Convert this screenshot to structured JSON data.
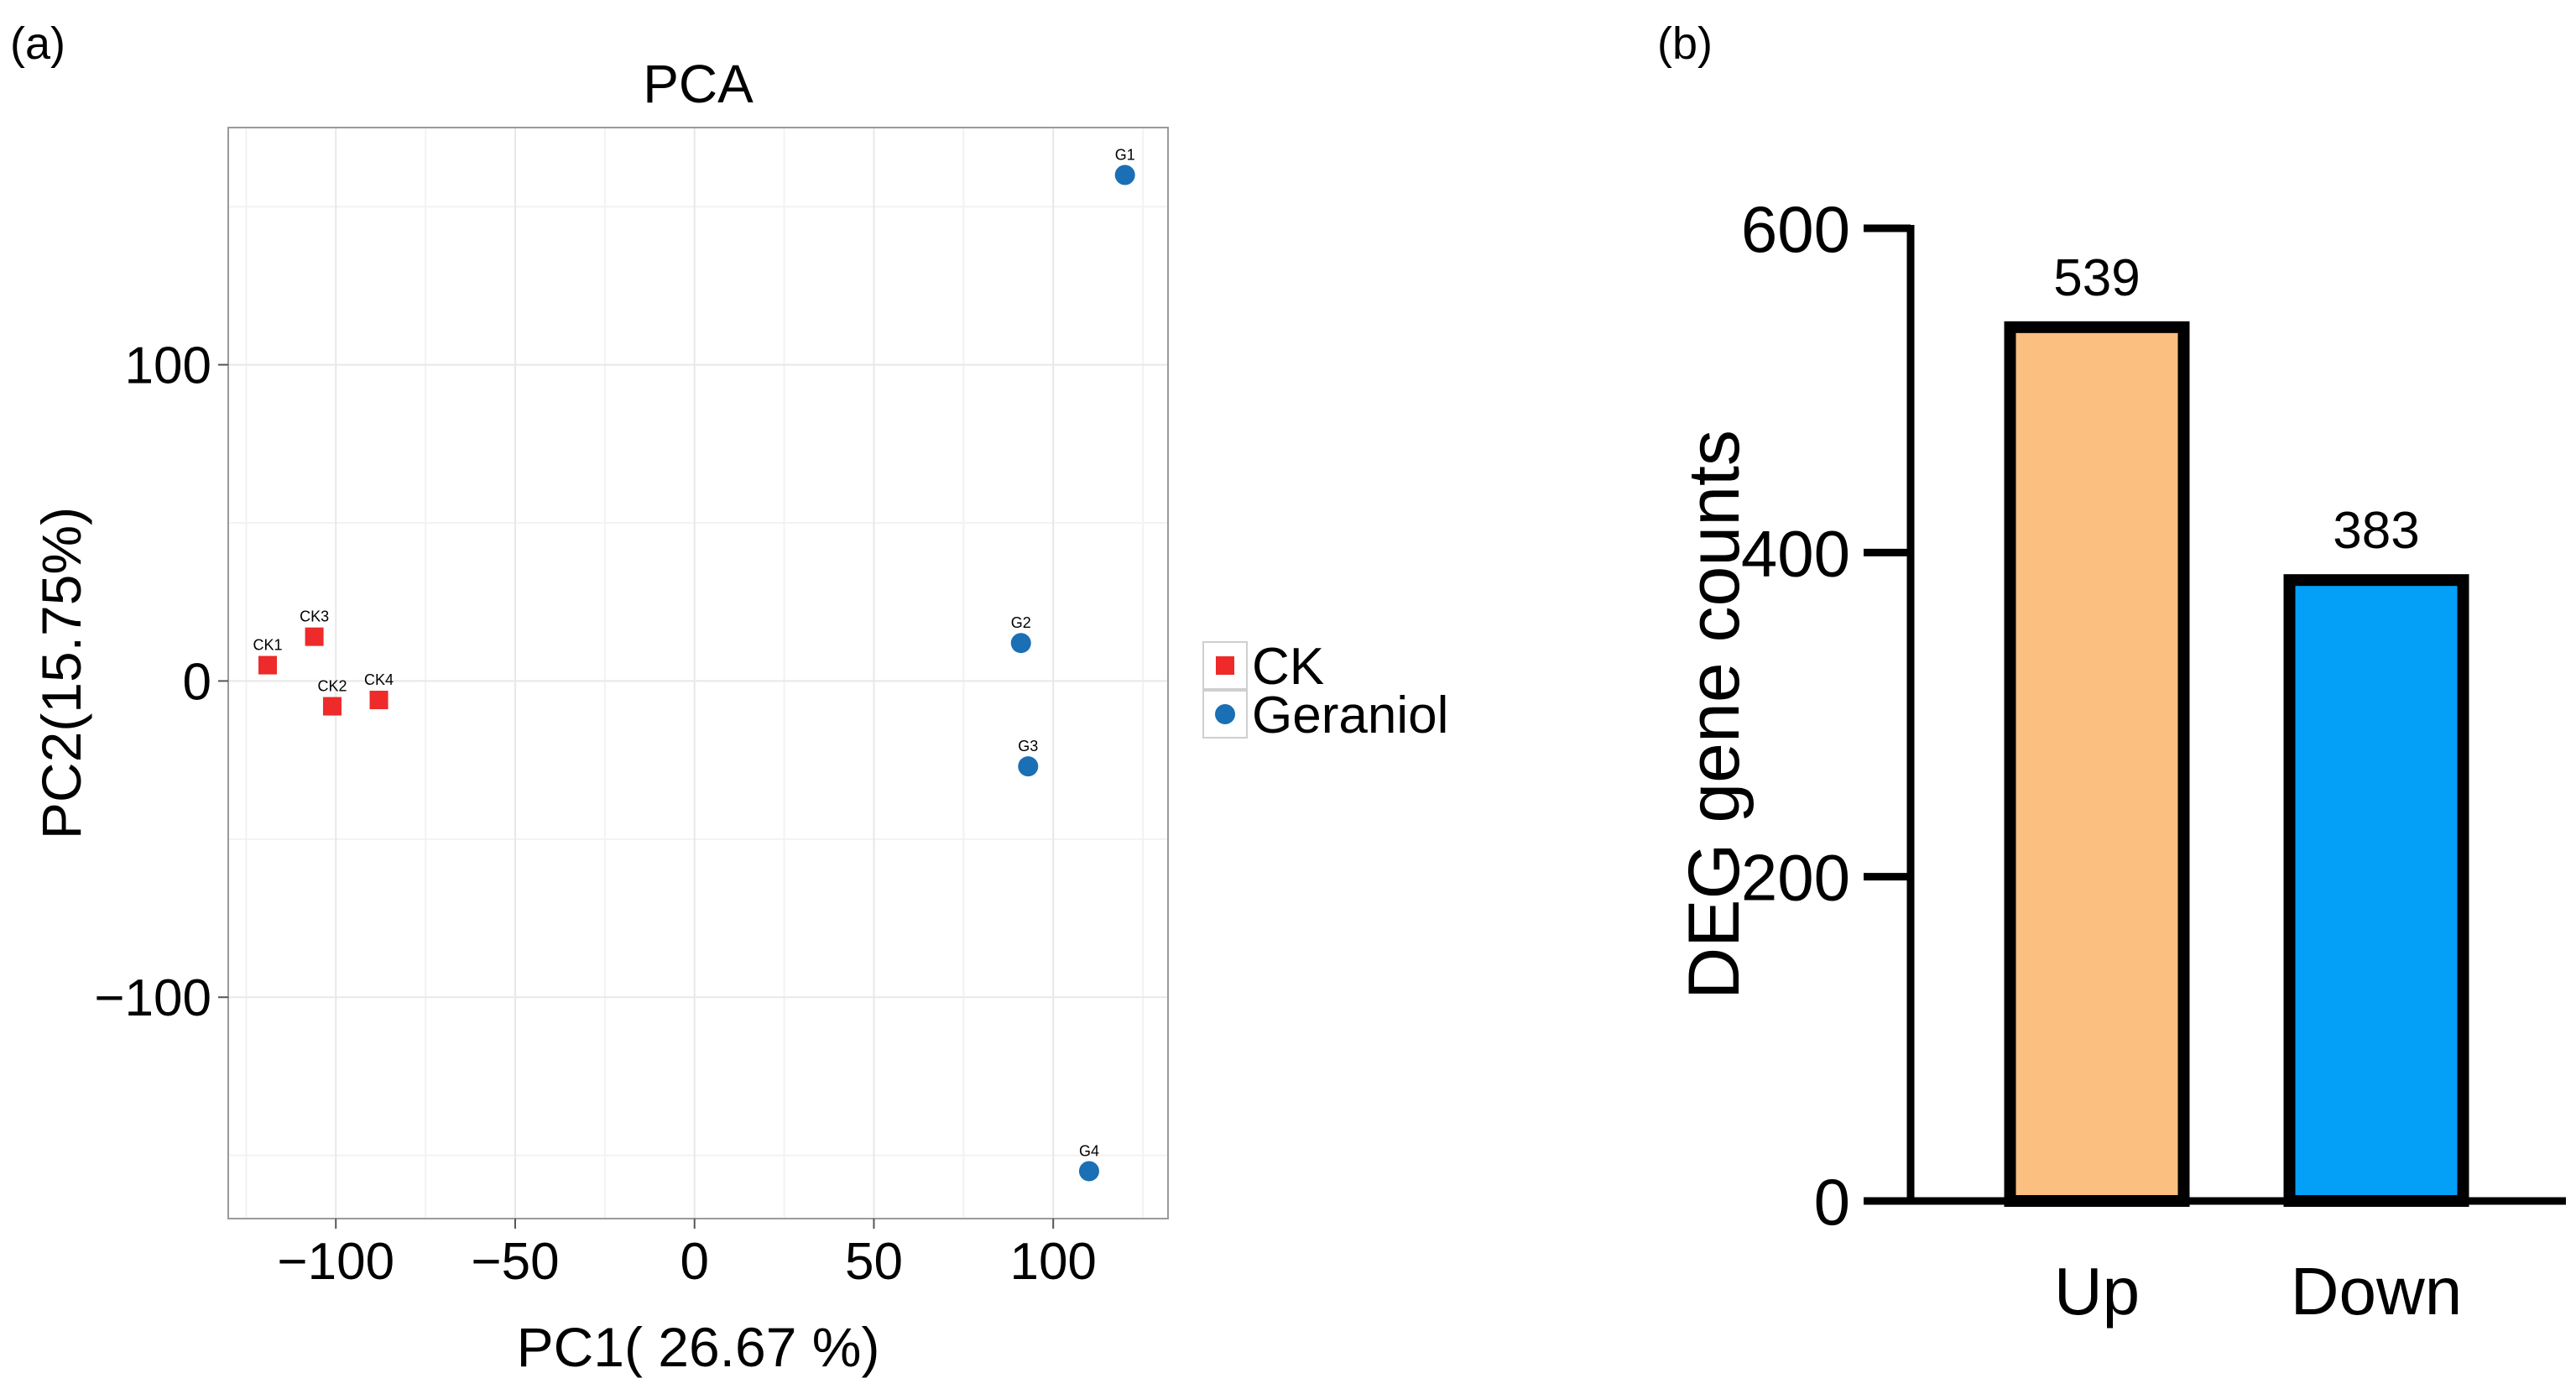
{
  "panel_a_label": "(a)",
  "panel_b_label": "(b)",
  "chart_data": [
    {
      "type": "scatter",
      "title": "PCA",
      "xlabel": "PC1( 26.67 %)",
      "ylabel": "PC2(15.75%)",
      "xlim": [
        -130,
        132
      ],
      "ylim": [
        -170,
        175
      ],
      "xticks": [
        -100,
        -50,
        0,
        50,
        100
      ],
      "xtick_labels": [
        "−100",
        "−50",
        "0",
        "50",
        "100"
      ],
      "yticks": [
        -100,
        0,
        100
      ],
      "ytick_labels": [
        "−100",
        "0",
        "100"
      ],
      "grid": true,
      "legend_position": "right",
      "series": [
        {
          "name": "CK",
          "color": "#ee2a2a",
          "marker": "square",
          "points": [
            {
              "label": "CK1",
              "x": -119,
              "y": 5
            },
            {
              "label": "CK3",
              "x": -106,
              "y": 14
            },
            {
              "label": "CK2",
              "x": -101,
              "y": -8
            },
            {
              "label": "CK4",
              "x": -88,
              "y": -6
            }
          ]
        },
        {
          "name": "Geraniol",
          "color": "#1a6fb5",
          "marker": "circle",
          "points": [
            {
              "label": "G1",
              "x": 120,
              "y": 160
            },
            {
              "label": "G2",
              "x": 91,
              "y": 12
            },
            {
              "label": "G3",
              "x": 93,
              "y": -27
            },
            {
              "label": "G4",
              "x": 110,
              "y": -155
            }
          ]
        }
      ]
    },
    {
      "type": "bar",
      "title": "",
      "xlabel": "",
      "ylabel": "DEG gene counts",
      "ylim": [
        0,
        600
      ],
      "yticks": [
        0,
        200,
        400,
        600
      ],
      "categories": [
        "Up",
        "Down"
      ],
      "values": [
        539,
        383
      ],
      "data_labels": [
        "539",
        "383"
      ],
      "colors": [
        "#fbbf80",
        "#04a0f8"
      ]
    }
  ]
}
